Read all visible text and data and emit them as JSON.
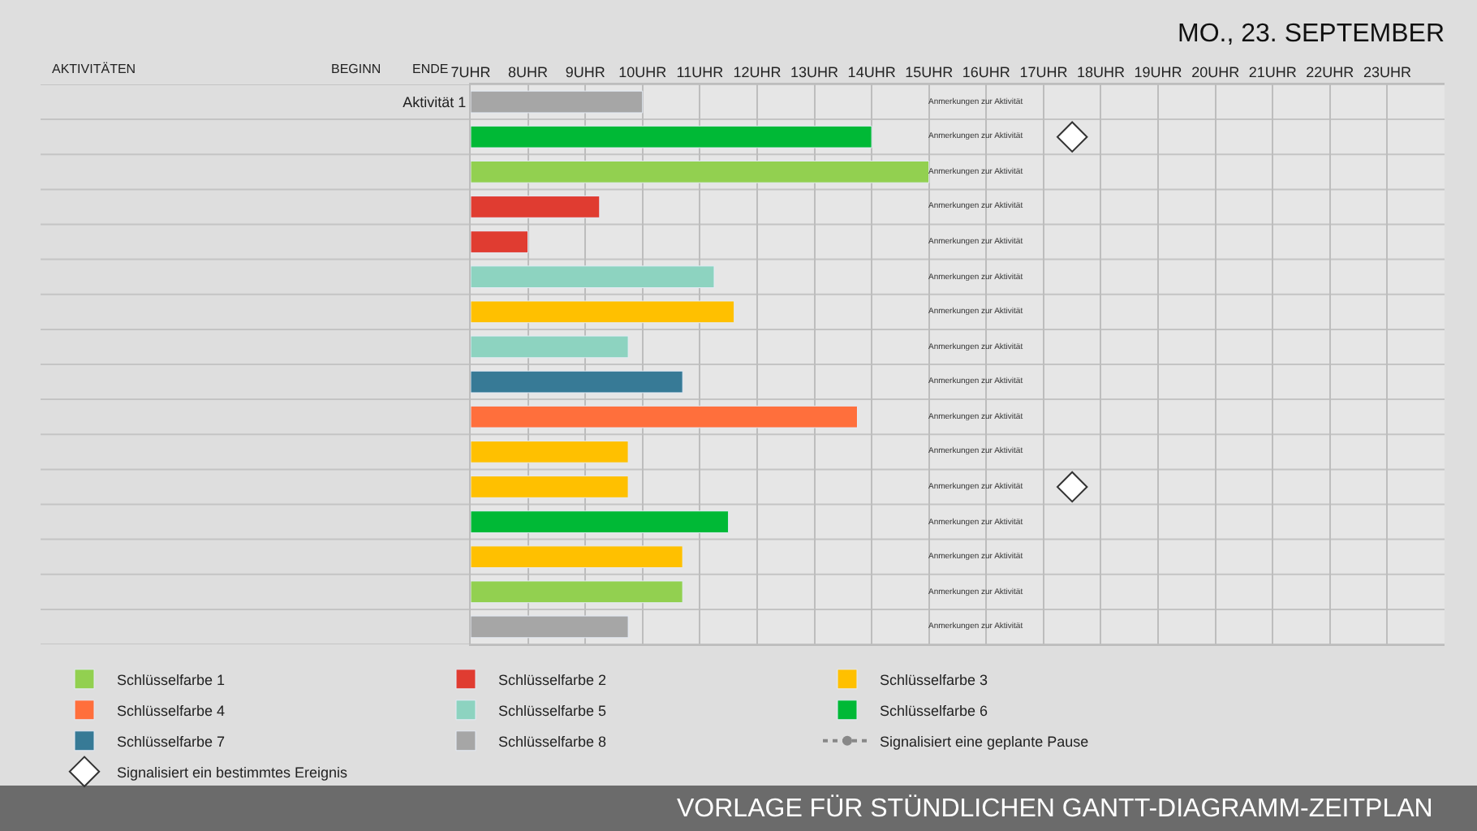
{
  "chart_data": {
    "type": "bar",
    "orientation": "horizontal",
    "title": "MO., 23. SEPTEMBER",
    "categories": [
      "Aktivität 1",
      null,
      null,
      null,
      null,
      null,
      null,
      null,
      null,
      null,
      null,
      null,
      null,
      null,
      null,
      null
    ],
    "series": [
      {
        "name": "Schlüsselfarbe 1",
        "color": "#92d050",
        "base": [
          null,
          null,
          7,
          null,
          null,
          null,
          null,
          null,
          null,
          null,
          null,
          null,
          null,
          null,
          7,
          null
        ],
        "values": [
          null,
          null,
          8,
          null,
          null,
          null,
          null,
          null,
          null,
          null,
          null,
          null,
          null,
          null,
          3.7,
          null
        ]
      },
      {
        "name": "Schlüsselfarbe 2",
        "color": "#e03c31",
        "base": [
          null,
          null,
          null,
          7,
          7,
          null,
          null,
          null,
          null,
          null,
          null,
          null,
          null,
          null,
          null,
          null
        ],
        "values": [
          null,
          null,
          null,
          2.25,
          1,
          null,
          null,
          null,
          null,
          null,
          null,
          null,
          null,
          null,
          null,
          null
        ]
      },
      {
        "name": "Schlüsselfarbe 3",
        "color": "#ffc000",
        "base": [
          null,
          null,
          null,
          null,
          null,
          null,
          7,
          null,
          null,
          null,
          7,
          7,
          null,
          7,
          null,
          null
        ],
        "values": [
          null,
          null,
          null,
          null,
          null,
          null,
          4.6,
          null,
          null,
          null,
          2.75,
          2.75,
          null,
          3.7,
          null,
          null
        ]
      },
      {
        "name": "Schlüsselfarbe 4",
        "color": "#ff6f3c",
        "base": [
          null,
          null,
          null,
          null,
          null,
          null,
          null,
          null,
          null,
          7,
          null,
          null,
          null,
          null,
          null,
          null
        ],
        "values": [
          null,
          null,
          null,
          null,
          null,
          null,
          null,
          null,
          null,
          6.75,
          null,
          null,
          null,
          null,
          null,
          null
        ]
      },
      {
        "name": "Schlüsselfarbe 5",
        "color": "#8dd3c0",
        "base": [
          null,
          null,
          null,
          null,
          null,
          7,
          null,
          7,
          null,
          null,
          null,
          null,
          null,
          null,
          null,
          null
        ],
        "values": [
          null,
          null,
          null,
          null,
          null,
          4.25,
          null,
          2.75,
          null,
          null,
          null,
          null,
          null,
          null,
          null,
          null
        ]
      },
      {
        "name": "Schlüsselfarbe 6",
        "color": "#00b936",
        "base": [
          null,
          7,
          null,
          null,
          null,
          null,
          null,
          null,
          null,
          null,
          null,
          null,
          7,
          null,
          null,
          null
        ],
        "values": [
          null,
          7,
          null,
          null,
          null,
          null,
          null,
          null,
          null,
          null,
          null,
          null,
          4.5,
          null,
          null,
          null
        ]
      },
      {
        "name": "Schlüsselfarbe 7",
        "color": "#377a96",
        "base": [
          null,
          null,
          null,
          null,
          null,
          null,
          null,
          null,
          7,
          null,
          null,
          null,
          null,
          null,
          null,
          null
        ],
        "values": [
          null,
          null,
          null,
          null,
          null,
          null,
          null,
          null,
          3.7,
          null,
          null,
          null,
          null,
          null,
          null,
          null
        ]
      },
      {
        "name": "Schlüsselfarbe 8",
        "color": "#a6a6a6",
        "base": [
          7,
          null,
          null,
          null,
          null,
          null,
          null,
          null,
          null,
          null,
          null,
          null,
          null,
          null,
          null,
          7
        ],
        "values": [
          3,
          null,
          null,
          null,
          null,
          null,
          null,
          null,
          null,
          null,
          null,
          null,
          null,
          null,
          null,
          2.75
        ]
      },
      {
        "name": "Signalisiert eine geplante Pause",
        "type": "line",
        "line_style": "dotted",
        "marker": "circle",
        "color": "#888888",
        "values": [
          null,
          null,
          null,
          null,
          null,
          null,
          null,
          null,
          null,
          null,
          null,
          null,
          null,
          null,
          null,
          null
        ]
      },
      {
        "name": "Signalisiert ein bestimmtes Ereignis",
        "type": "scatter",
        "marker": "diamond",
        "color": "#ffffff",
        "values": [
          null,
          17.5,
          null,
          null,
          null,
          null,
          null,
          null,
          null,
          null,
          null,
          17.5,
          null,
          null,
          null,
          null
        ]
      }
    ],
    "xlim": [
      7,
      24
    ],
    "xticks": [
      {
        "value": 7,
        "label": "7UHR"
      },
      {
        "value": 8,
        "label": "8UHR"
      },
      {
        "value": 9,
        "label": "9UHR"
      },
      {
        "value": 10,
        "label": "10UHR"
      },
      {
        "value": 11,
        "label": "11UHR"
      },
      {
        "value": 12,
        "label": "12UHR"
      },
      {
        "value": 13,
        "label": "13UHR"
      },
      {
        "value": 14,
        "label": "14UHR"
      },
      {
        "value": 15,
        "label": "15UHR"
      },
      {
        "value": 16,
        "label": "16UHR"
      },
      {
        "value": 17,
        "label": "17UHR"
      },
      {
        "value": 18,
        "label": "18UHR"
      },
      {
        "value": 19,
        "label": "19UHR"
      },
      {
        "value": 20,
        "label": "20UHR"
      },
      {
        "value": 21,
        "label": "21UHR"
      },
      {
        "value": 22,
        "label": "22UHR"
      },
      {
        "value": 23,
        "label": "23UHR"
      }
    ],
    "grid": "x",
    "legend": "bottom",
    "annotations": [
      "AKTIVITÄTEN",
      "BEGINN",
      "ENDE",
      "Anmerkungen zur Aktivität",
      "Anmerkungen zur Aktivität",
      "Anmerkungen zur Aktivität",
      "Anmerkungen zur Aktivität",
      "Anmerkungen zur Aktivität",
      "Anmerkungen zur Aktivität",
      "Anmerkungen zur Aktivität",
      "Anmerkungen zur Aktivität",
      "Anmerkungen zur Aktivität",
      "Anmerkungen zur Aktivität",
      "Anmerkungen zur Aktivität",
      "Anmerkungen zur Aktivität",
      "Anmerkungen zur Aktivität",
      "Anmerkungen zur Aktivität",
      "Anmerkungen zur Aktivität",
      "Anmerkungen zur Aktivität",
      "VORLAGE FÜR STÜNDLICHEN GANTT-DIAGRAMM-ZEITPLAN"
    ]
  }
}
